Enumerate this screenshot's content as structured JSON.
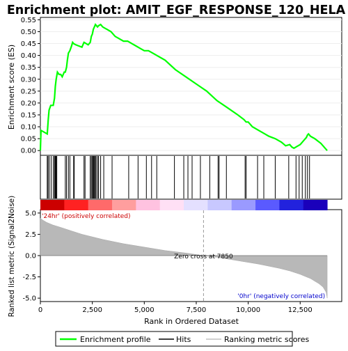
{
  "chart_data": {
    "type": "line",
    "title": "Enrichment plot: AMIT_EGF_RESPONSE_120_HELA",
    "es_panel": {
      "ylabel": "Enrichment score (ES)",
      "yticks": [
        "0.00",
        "0.05",
        "0.10",
        "0.15",
        "0.20",
        "0.25",
        "0.30",
        "0.35",
        "0.40",
        "0.45",
        "0.50",
        "0.55"
      ],
      "ylim": [
        -0.02,
        0.56
      ],
      "series": [
        {
          "name": "Enrichment profile",
          "color": "#00ff00",
          "x": [
            0,
            30,
            330,
            380,
            420,
            500,
            560,
            620,
            680,
            720,
            760,
            820,
            900,
            980,
            1050,
            1150,
            1200,
            1260,
            1300,
            1350,
            1420,
            1500,
            1550,
            1600,
            1700,
            1850,
            2000,
            2100,
            2200,
            2300,
            2400,
            2450,
            2500,
            2550,
            2600,
            2650,
            2700,
            2750,
            2800,
            2900,
            3000,
            3100,
            3200,
            3400,
            3600,
            3800,
            4000,
            4200,
            4400,
            4600,
            4800,
            5000,
            5200,
            5400,
            5600,
            5800,
            6000,
            6500,
            7000,
            7500,
            8000,
            8500,
            9000,
            9500,
            9800,
            9900,
            10000,
            10200,
            10400,
            10500,
            10700,
            11000,
            11300,
            11600,
            11800,
            12000,
            12100,
            12200,
            12300,
            12400,
            12500,
            12550,
            12600,
            12700,
            12800,
            12850,
            12900,
            13000,
            13200,
            13500,
            13700,
            13800
          ],
          "y": [
            0.0,
            0.085,
            0.07,
            0.13,
            0.17,
            0.19,
            0.19,
            0.19,
            0.22,
            0.27,
            0.3,
            0.33,
            0.32,
            0.32,
            0.31,
            0.33,
            0.33,
            0.35,
            0.38,
            0.41,
            0.42,
            0.44,
            0.455,
            0.45,
            0.445,
            0.44,
            0.435,
            0.455,
            0.45,
            0.445,
            0.455,
            0.48,
            0.49,
            0.51,
            0.52,
            0.53,
            0.525,
            0.52,
            0.525,
            0.53,
            0.52,
            0.515,
            0.51,
            0.5,
            0.48,
            0.47,
            0.46,
            0.46,
            0.45,
            0.44,
            0.43,
            0.42,
            0.42,
            0.41,
            0.4,
            0.39,
            0.38,
            0.34,
            0.31,
            0.28,
            0.25,
            0.21,
            0.18,
            0.15,
            0.13,
            0.12,
            0.12,
            0.1,
            0.09,
            0.085,
            0.075,
            0.06,
            0.05,
            0.035,
            0.02,
            0.025,
            0.015,
            0.01,
            0.015,
            0.02,
            0.025,
            0.03,
            0.035,
            0.045,
            0.055,
            0.065,
            0.07,
            0.06,
            0.05,
            0.03,
            0.01,
            0.0
          ]
        }
      ]
    },
    "hits": {
      "label": "Hits",
      "x": [
        330,
        370,
        430,
        520,
        620,
        680,
        700,
        730,
        760,
        790,
        1200,
        1260,
        1350,
        1420,
        1600,
        1630,
        2100,
        2150,
        2400,
        2450,
        2500,
        2520,
        2560,
        2600,
        2640,
        2680,
        2750,
        2800,
        2900,
        3050,
        3450,
        4250,
        4700,
        5100,
        5350,
        5600,
        6450,
        6900,
        7100,
        7300,
        7700,
        8150,
        8550,
        8600,
        8950,
        9850,
        9900,
        10450,
        10750,
        11300,
        11950,
        12300,
        12450,
        12600,
        12750,
        12850,
        12950
      ]
    },
    "ranked_panel": {
      "ylabel": "Ranked list metric (Signal2Noise)",
      "xlabel": "Rank in Ordered Dataset",
      "yticks": [
        "-5.0",
        "-2.5",
        "0.0",
        "2.5",
        "5.0"
      ],
      "xticks": [
        "0",
        "2,500",
        "5,000",
        "7,500",
        "10,000",
        "12,500"
      ],
      "xlim": [
        0,
        14500
      ],
      "ylim": [
        -5.4,
        5.4
      ],
      "zero_cross_rank": 7850,
      "zero_cross_text": "Zero cross at 7850",
      "pos_label": "'24hr' (positively correlated)",
      "neg_label": "'0hr' (negatively correlated)",
      "metric_curve": {
        "x": [
          0,
          100,
          300,
          600,
          1000,
          1500,
          2000,
          2500,
          3000,
          4000,
          5000,
          6000,
          7000,
          7850,
          8500,
          9500,
          10500,
          11500,
          12000,
          12500,
          12800,
          13000,
          13200,
          13400,
          13600,
          13750,
          13800
        ],
        "y": [
          4.4,
          4.2,
          3.9,
          3.6,
          3.3,
          2.9,
          2.5,
          2.2,
          1.9,
          1.4,
          1.0,
          0.6,
          0.3,
          0.0,
          -0.2,
          -0.6,
          -1.0,
          -1.5,
          -1.8,
          -2.2,
          -2.5,
          -2.7,
          -3.0,
          -3.3,
          -3.7,
          -4.3,
          -5.0
        ]
      }
    },
    "heatmap_colors": [
      "#cc0000",
      "#ff2222",
      "#ff6a6a",
      "#ff9e9e",
      "#ffc2e0",
      "#ffe0f5",
      "#e4e0ff",
      "#c8c8ff",
      "#9a9aff",
      "#5a5aff",
      "#2222dd",
      "#1a00bb"
    ],
    "legend": {
      "items": [
        {
          "label": "Enrichment profile",
          "color": "#00ff00"
        },
        {
          "label": "Hits",
          "color": "#000000"
        },
        {
          "label": "Ranking metric scores",
          "color": "#c0c0c0"
        }
      ]
    }
  }
}
